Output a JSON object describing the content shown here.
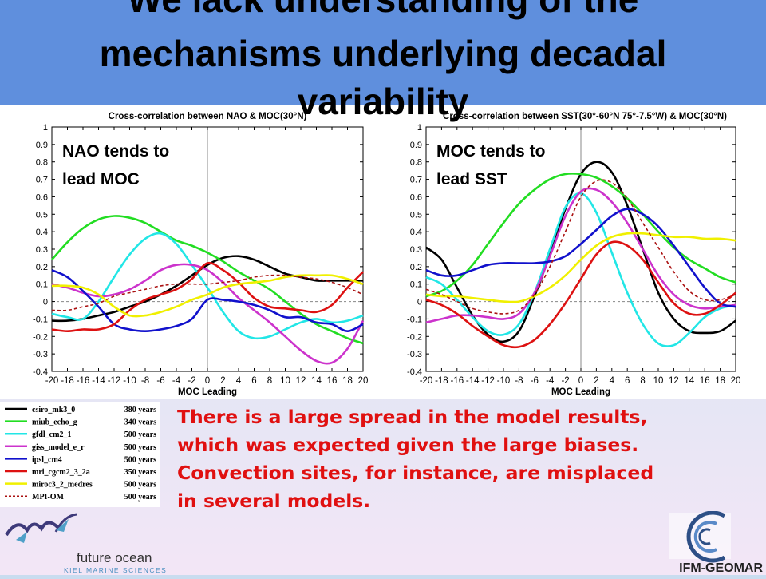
{
  "title": {
    "lines": [
      "We lack understanding of the",
      "mechanisms underlying decadal",
      "variability"
    ]
  },
  "body": {
    "lines": [
      "There is a large spread in the model results,",
      "which was expected given the large biases.",
      "Convection sites, for instance, are misplaced",
      "in several models."
    ]
  },
  "logos": {
    "left_line1": "future ocean",
    "left_line2": "KIEL MARINE SCIENCES",
    "right": "IFM-GEOMAR"
  },
  "legend": [
    {
      "model": "csiro_mk3_0",
      "years": "380 years",
      "color": "#000000",
      "dash": false
    },
    {
      "model": "miub_echo_g",
      "years": "340 years",
      "color": "#22dd22",
      "dash": false
    },
    {
      "model": "gfdl_cm2_1",
      "years": "500 years",
      "color": "#22e6e6",
      "dash": false
    },
    {
      "model": "giss_model_e_r",
      "years": "500 years",
      "color": "#cc33cc",
      "dash": false
    },
    {
      "model": "ipsl_cm4",
      "years": "500 years",
      "color": "#1111cc",
      "dash": false
    },
    {
      "model": "mri_cgcm2_3_2a",
      "years": "350 years",
      "color": "#dd1111",
      "dash": false
    },
    {
      "model": "miroc3_2_medres",
      "years": "500 years",
      "color": "#f0f000",
      "dash": false
    },
    {
      "model": "MPI-OM",
      "years": "500 years",
      "color": "#aa1111",
      "dash": true
    }
  ],
  "chart_data": [
    {
      "type": "line",
      "title": "Cross-correlation between NAO & MOC(30°N)",
      "xlabel": "MOC Leading",
      "ylabel": "",
      "xlim": [
        -20,
        20
      ],
      "ylim": [
        -0.4,
        1
      ],
      "x_ticks": [
        -20,
        -18,
        -16,
        -14,
        -12,
        -10,
        -8,
        -6,
        -4,
        -2,
        0,
        2,
        4,
        6,
        8,
        10,
        12,
        14,
        16,
        18,
        20
      ],
      "y_ticks": [
        -0.4,
        -0.3,
        -0.2,
        -0.1,
        0,
        0.1,
        0.2,
        0.3,
        0.4,
        0.5,
        0.6,
        0.7,
        0.8,
        0.9,
        1
      ],
      "annotation": [
        "NAO tends to",
        "lead MOC"
      ],
      "grid": false,
      "x": [
        -20,
        -18,
        -16,
        -14,
        -12,
        -10,
        -8,
        -6,
        -4,
        -2,
        0,
        2,
        4,
        6,
        8,
        10,
        12,
        14,
        16,
        18,
        20
      ],
      "series": [
        {
          "name": "csiro_mk3_0",
          "values": [
            -0.11,
            -0.11,
            -0.1,
            -0.08,
            -0.06,
            -0.03,
            0.0,
            0.04,
            0.09,
            0.15,
            0.21,
            0.25,
            0.26,
            0.24,
            0.2,
            0.16,
            0.14,
            0.12,
            0.12,
            0.12,
            0.12
          ]
        },
        {
          "name": "miub_echo_g",
          "values": [
            0.24,
            0.34,
            0.42,
            0.47,
            0.49,
            0.48,
            0.45,
            0.4,
            0.35,
            0.32,
            0.28,
            0.23,
            0.17,
            0.12,
            0.07,
            0.0,
            -0.07,
            -0.13,
            -0.17,
            -0.21,
            -0.24
          ]
        },
        {
          "name": "gfdl_cm2_1",
          "values": [
            -0.07,
            -0.09,
            -0.1,
            0.0,
            0.14,
            0.27,
            0.36,
            0.39,
            0.33,
            0.21,
            0.08,
            -0.06,
            -0.17,
            -0.21,
            -0.2,
            -0.16,
            -0.12,
            -0.1,
            -0.12,
            -0.11,
            -0.08
          ]
        },
        {
          "name": "giss_model_e_r",
          "values": [
            0.1,
            0.08,
            0.05,
            0.03,
            0.04,
            0.07,
            0.12,
            0.18,
            0.21,
            0.21,
            0.18,
            0.11,
            0.02,
            -0.05,
            -0.12,
            -0.2,
            -0.28,
            -0.34,
            -0.35,
            -0.27,
            -0.11
          ]
        },
        {
          "name": "ipsl_cm4",
          "values": [
            0.18,
            0.14,
            0.06,
            -0.03,
            -0.13,
            -0.16,
            -0.17,
            -0.16,
            -0.14,
            -0.1,
            0.01,
            0.01,
            0.0,
            -0.02,
            -0.05,
            -0.09,
            -0.09,
            -0.12,
            -0.13,
            -0.17,
            -0.13
          ]
        },
        {
          "name": "mri_cgcm2_3_2a",
          "values": [
            -0.16,
            -0.17,
            -0.16,
            -0.16,
            -0.13,
            -0.05,
            0.01,
            0.04,
            0.07,
            0.13,
            0.22,
            0.18,
            0.11,
            0.02,
            -0.03,
            -0.04,
            -0.05,
            -0.06,
            -0.02,
            0.08,
            0.17
          ]
        },
        {
          "name": "miroc3_2_medres",
          "values": [
            0.09,
            0.09,
            0.08,
            0.04,
            -0.03,
            -0.08,
            -0.08,
            -0.06,
            -0.03,
            0.01,
            0.04,
            0.08,
            0.1,
            0.11,
            0.12,
            0.14,
            0.15,
            0.15,
            0.15,
            0.13,
            0.1
          ]
        },
        {
          "name": "MPI-OM",
          "values": [
            -0.05,
            -0.05,
            -0.03,
            -0.01,
            0.03,
            0.05,
            0.07,
            0.09,
            0.1,
            0.1,
            0.1,
            0.11,
            0.12,
            0.14,
            0.15,
            0.15,
            0.14,
            0.13,
            0.11,
            0.08,
            0.04
          ]
        }
      ]
    },
    {
      "type": "line",
      "title": "Cross-correlation between SST(30°-60°N 75°-7.5°W) & MOC(30°N)",
      "xlabel": "MOC Leading",
      "ylabel": "",
      "xlim": [
        -20,
        20
      ],
      "ylim": [
        -0.4,
        1
      ],
      "x_ticks": [
        -20,
        -18,
        -16,
        -14,
        -12,
        -10,
        -8,
        -6,
        -4,
        -2,
        0,
        2,
        4,
        6,
        8,
        10,
        12,
        14,
        16,
        18,
        20
      ],
      "y_ticks": [
        -0.4,
        -0.3,
        -0.2,
        -0.1,
        0,
        0.1,
        0.2,
        0.3,
        0.4,
        0.5,
        0.6,
        0.7,
        0.8,
        0.9,
        1
      ],
      "annotation": [
        "MOC tends to",
        "lead SST"
      ],
      "grid": false,
      "x": [
        -20,
        -18,
        -16,
        -14,
        -12,
        -10,
        -8,
        -6,
        -4,
        -2,
        0,
        2,
        4,
        6,
        8,
        10,
        12,
        14,
        16,
        18,
        20
      ],
      "series": [
        {
          "name": "csiro_mk3_0",
          "values": [
            0.31,
            0.24,
            0.08,
            -0.08,
            -0.19,
            -0.23,
            -0.17,
            0.03,
            0.27,
            0.53,
            0.73,
            0.8,
            0.74,
            0.55,
            0.3,
            0.05,
            -0.1,
            -0.17,
            -0.18,
            -0.17,
            -0.11
          ]
        },
        {
          "name": "miub_echo_g",
          "values": [
            0.03,
            0.06,
            0.12,
            0.21,
            0.33,
            0.45,
            0.56,
            0.64,
            0.7,
            0.73,
            0.73,
            0.71,
            0.66,
            0.59,
            0.5,
            0.4,
            0.31,
            0.24,
            0.19,
            0.14,
            0.11
          ]
        },
        {
          "name": "gfdl_cm2_1",
          "values": [
            0.14,
            0.1,
            0.01,
            -0.09,
            -0.17,
            -0.19,
            -0.13,
            0.05,
            0.3,
            0.54,
            0.62,
            0.51,
            0.28,
            0.05,
            -0.13,
            -0.24,
            -0.25,
            -0.18,
            -0.09,
            -0.04,
            -0.02
          ]
        },
        {
          "name": "giss_model_e_r",
          "values": [
            -0.12,
            -0.1,
            -0.08,
            -0.08,
            -0.09,
            -0.1,
            -0.07,
            0.05,
            0.26,
            0.49,
            0.63,
            0.64,
            0.57,
            0.45,
            0.3,
            0.15,
            0.04,
            -0.02,
            -0.04,
            -0.03,
            -0.02
          ]
        },
        {
          "name": "ipsl_cm4",
          "values": [
            0.18,
            0.15,
            0.15,
            0.18,
            0.21,
            0.22,
            0.22,
            0.22,
            0.23,
            0.26,
            0.33,
            0.41,
            0.49,
            0.53,
            0.5,
            0.43,
            0.32,
            0.2,
            0.08,
            -0.01,
            -0.03
          ]
        },
        {
          "name": "mri_cgcm2_3_2a",
          "values": [
            0.01,
            -0.02,
            -0.07,
            -0.14,
            -0.2,
            -0.25,
            -0.26,
            -0.22,
            -0.13,
            -0.01,
            0.13,
            0.27,
            0.34,
            0.32,
            0.24,
            0.11,
            -0.01,
            -0.07,
            -0.07,
            -0.02,
            0.05
          ]
        },
        {
          "name": "miroc3_2_medres",
          "values": [
            0.04,
            0.03,
            0.03,
            0.02,
            0.01,
            0.0,
            0.0,
            0.03,
            0.08,
            0.15,
            0.24,
            0.32,
            0.37,
            0.39,
            0.39,
            0.38,
            0.37,
            0.37,
            0.36,
            0.36,
            0.35
          ]
        },
        {
          "name": "MPI-OM",
          "values": [
            0.07,
            0.04,
            0.0,
            -0.04,
            -0.06,
            -0.07,
            -0.05,
            0.04,
            0.2,
            0.4,
            0.6,
            0.69,
            0.68,
            0.59,
            0.45,
            0.31,
            0.17,
            0.06,
            0.01,
            0.01,
            0.04
          ]
        }
      ]
    }
  ]
}
